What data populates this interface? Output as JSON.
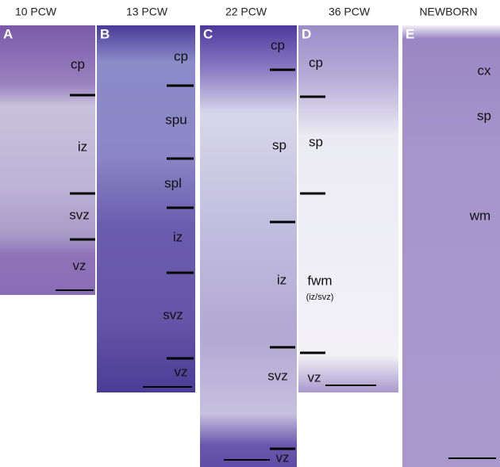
{
  "panels": [
    {
      "letter": "A",
      "title": "10 PCW",
      "layers": [
        "cp",
        "iz",
        "svz",
        "vz"
      ]
    },
    {
      "letter": "B",
      "title": "13 PCW",
      "layers": [
        "cp",
        "spu",
        "spl",
        "iz",
        "svz",
        "vz"
      ]
    },
    {
      "letter": "C",
      "title": "22 PCW",
      "layers": [
        "cp",
        "sp",
        "iz",
        "svz",
        "vz"
      ]
    },
    {
      "letter": "D",
      "title": "36 PCW",
      "layers": [
        "cp",
        "sp",
        "fwm",
        "vz"
      ],
      "note": "(iz/svz)"
    },
    {
      "letter": "E",
      "title": "NEWBORN",
      "layers": [
        "cx",
        "sp",
        "wm"
      ]
    }
  ]
}
